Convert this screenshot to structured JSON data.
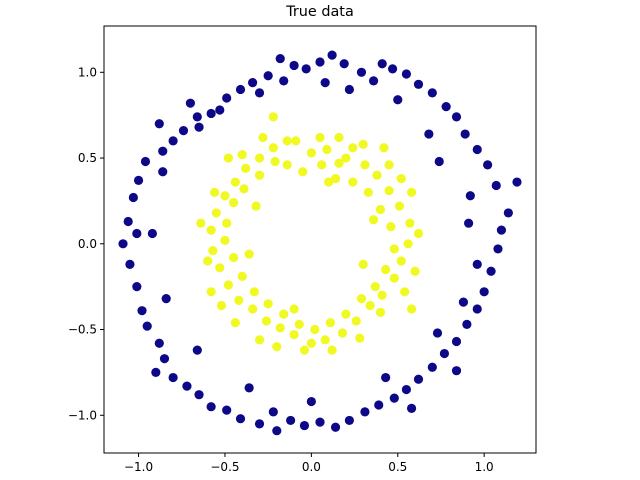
{
  "chart_data": {
    "type": "scatter",
    "title": "True data",
    "xlabel": "",
    "ylabel": "",
    "xlim": [
      -1.2,
      1.3
    ],
    "ylim": [
      -1.22,
      1.27
    ],
    "xticks": [
      -1.0,
      -0.5,
      0.0,
      0.5,
      1.0
    ],
    "xtick_labels": [
      "−1.0",
      "−0.5",
      "0.0",
      "0.5",
      "1.0"
    ],
    "yticks": [
      -1.0,
      -0.5,
      0.0,
      0.5,
      1.0
    ],
    "ytick_labels": [
      "−1.0",
      "−0.5",
      "0.0",
      "0.5",
      "1.0"
    ],
    "grid": false,
    "legend": "none",
    "colors": {
      "outer": "#0d0887",
      "inner": "#f0f921"
    },
    "series": [
      {
        "color": "#0d0887",
        "points": [
          [
            -0.18,
            1.08
          ],
          [
            -0.1,
            1.04
          ],
          [
            -0.03,
            1.02
          ],
          [
            0.05,
            1.06
          ],
          [
            0.12,
            1.1
          ],
          [
            0.19,
            1.05
          ],
          [
            0.29,
            1.0
          ],
          [
            0.36,
            0.95
          ],
          [
            -0.25,
            0.98
          ],
          [
            -0.34,
            0.94
          ],
          [
            -0.41,
            0.9
          ],
          [
            -0.49,
            0.85
          ],
          [
            -0.58,
            0.76
          ],
          [
            -0.66,
            0.74
          ],
          [
            -0.74,
            0.66
          ],
          [
            -0.8,
            0.6
          ],
          [
            -0.86,
            0.54
          ],
          [
            -0.96,
            0.48
          ],
          [
            -1.0,
            0.37
          ],
          [
            -1.03,
            0.27
          ],
          [
            -1.06,
            0.13
          ],
          [
            -1.09,
            0.0
          ],
          [
            -1.05,
            -0.12
          ],
          [
            -1.01,
            -0.25
          ],
          [
            -0.98,
            -0.39
          ],
          [
            -0.95,
            -0.48
          ],
          [
            -0.88,
            -0.58
          ],
          [
            -0.85,
            -0.67
          ],
          [
            -0.8,
            -0.78
          ],
          [
            -0.72,
            -0.83
          ],
          [
            -0.65,
            -0.88
          ],
          [
            -0.58,
            -0.95
          ],
          [
            -0.49,
            -0.97
          ],
          [
            -0.41,
            -1.02
          ],
          [
            -0.3,
            -1.05
          ],
          [
            -0.2,
            -1.09
          ],
          [
            -0.12,
            -1.03
          ],
          [
            -0.04,
            -1.06
          ],
          [
            0.05,
            -1.04
          ],
          [
            0.14,
            -1.07
          ],
          [
            0.22,
            -1.03
          ],
          [
            0.31,
            -0.98
          ],
          [
            0.39,
            -0.94
          ],
          [
            0.48,
            -0.9
          ],
          [
            0.55,
            -0.85
          ],
          [
            0.62,
            -0.79
          ],
          [
            0.7,
            -0.72
          ],
          [
            0.77,
            -0.64
          ],
          [
            0.84,
            -0.57
          ],
          [
            0.9,
            -0.47
          ],
          [
            0.96,
            -0.38
          ],
          [
            1.0,
            -0.28
          ],
          [
            1.04,
            -0.16
          ],
          [
            1.08,
            -0.03
          ],
          [
            1.1,
            0.08
          ],
          [
            1.14,
            0.18
          ],
          [
            1.19,
            0.36
          ],
          [
            1.07,
            0.34
          ],
          [
            1.02,
            0.46
          ],
          [
            0.96,
            0.55
          ],
          [
            0.89,
            0.64
          ],
          [
            0.84,
            0.74
          ],
          [
            0.78,
            0.8
          ],
          [
            0.7,
            0.88
          ],
          [
            0.62,
            0.93
          ],
          [
            0.55,
            0.99
          ],
          [
            0.47,
            1.02
          ],
          [
            0.41,
            1.05
          ],
          [
            -0.7,
            0.82
          ],
          [
            -0.53,
            0.78
          ],
          [
            -0.16,
            0.95
          ],
          [
            0.22,
            0.9
          ],
          [
            0.68,
            0.64
          ],
          [
            0.92,
            0.28
          ],
          [
            0.96,
            -0.12
          ],
          [
            0.88,
            -0.34
          ],
          [
            0.73,
            -0.52
          ],
          [
            0.43,
            -0.78
          ],
          [
            0.0,
            -0.92
          ],
          [
            -0.36,
            -0.84
          ],
          [
            -0.66,
            -0.62
          ],
          [
            -0.84,
            -0.32
          ],
          [
            -0.92,
            0.06
          ],
          [
            -0.86,
            0.42
          ],
          [
            -0.65,
            0.68
          ],
          [
            -0.3,
            0.88
          ],
          [
            0.08,
            0.94
          ],
          [
            0.5,
            0.84
          ],
          [
            0.74,
            0.48
          ],
          [
            0.91,
            0.12
          ],
          [
            0.84,
            -0.74
          ],
          [
            0.58,
            -0.96
          ],
          [
            -0.22,
            -0.98
          ],
          [
            -0.9,
            -0.75
          ],
          [
            -1.01,
            0.06
          ],
          [
            -0.88,
            0.7
          ]
        ]
      },
      {
        "color": "#f0f921",
        "points": [
          [
            -0.22,
            0.74
          ],
          [
            -0.09,
            0.6
          ],
          [
            0.0,
            0.53
          ],
          [
            0.09,
            0.55
          ],
          [
            0.16,
            0.47
          ],
          [
            0.24,
            0.56
          ],
          [
            0.31,
            0.46
          ],
          [
            0.38,
            0.4
          ],
          [
            0.45,
            0.31
          ],
          [
            0.51,
            0.22
          ],
          [
            0.57,
            0.12
          ],
          [
            0.56,
            0.0
          ],
          [
            0.52,
            -0.1
          ],
          [
            0.48,
            -0.2
          ],
          [
            0.41,
            -0.3
          ],
          [
            0.34,
            -0.36
          ],
          [
            0.26,
            -0.45
          ],
          [
            0.18,
            -0.52
          ],
          [
            0.08,
            -0.56
          ],
          [
            0.0,
            -0.58
          ],
          [
            -0.1,
            -0.53
          ],
          [
            -0.18,
            -0.49
          ],
          [
            -0.26,
            -0.45
          ],
          [
            -0.34,
            -0.38
          ],
          [
            -0.42,
            -0.33
          ],
          [
            -0.48,
            -0.24
          ],
          [
            -0.53,
            -0.14
          ],
          [
            -0.57,
            -0.04
          ],
          [
            -0.58,
            0.08
          ],
          [
            -0.55,
            0.18
          ],
          [
            -0.5,
            0.28
          ],
          [
            -0.44,
            0.36
          ],
          [
            -0.38,
            0.44
          ],
          [
            -0.3,
            0.5
          ],
          [
            -0.22,
            0.56
          ],
          [
            -0.14,
            0.46
          ],
          [
            -0.05,
            0.42
          ],
          [
            0.06,
            0.46
          ],
          [
            0.14,
            0.38
          ],
          [
            0.24,
            0.36
          ],
          [
            0.33,
            0.3
          ],
          [
            0.4,
            0.2
          ],
          [
            0.46,
            0.1
          ],
          [
            0.48,
            -0.03
          ],
          [
            0.43,
            -0.15
          ],
          [
            0.37,
            -0.25
          ],
          [
            0.29,
            -0.32
          ],
          [
            0.2,
            -0.41
          ],
          [
            0.11,
            -0.46
          ],
          [
            0.02,
            -0.5
          ],
          [
            -0.07,
            -0.47
          ],
          [
            -0.16,
            -0.41
          ],
          [
            -0.25,
            -0.35
          ],
          [
            -0.33,
            -0.28
          ],
          [
            -0.4,
            -0.19
          ],
          [
            -0.45,
            -0.08
          ],
          [
            -0.5,
            0.02
          ],
          [
            -0.49,
            0.12
          ],
          [
            -0.45,
            0.24
          ],
          [
            -0.39,
            0.32
          ],
          [
            -0.3,
            0.4
          ],
          [
            -0.21,
            0.48
          ],
          [
            0.05,
            0.62
          ],
          [
            0.45,
            0.46
          ],
          [
            0.58,
            0.3
          ],
          [
            0.6,
            -0.16
          ],
          [
            0.4,
            -0.4
          ],
          [
            -0.04,
            -0.62
          ],
          [
            -0.44,
            -0.46
          ],
          [
            -0.6,
            -0.1
          ],
          [
            -0.56,
            0.3
          ],
          [
            -0.28,
            0.62
          ],
          [
            0.2,
            0.5
          ],
          [
            0.52,
            0.38
          ],
          [
            0.54,
            -0.28
          ],
          [
            0.12,
            -0.62
          ],
          [
            -0.3,
            -0.56
          ],
          [
            -0.64,
            0.12
          ],
          [
            -0.48,
            0.5
          ],
          [
            0.3,
            0.58
          ],
          [
            0.62,
            0.06
          ],
          [
            0.28,
            -0.55
          ],
          [
            -0.2,
            -0.6
          ],
          [
            -0.52,
            -0.36
          ],
          [
            -0.4,
            0.52
          ],
          [
            0.1,
            0.36
          ],
          [
            0.36,
            0.14
          ],
          [
            0.3,
            -0.12
          ],
          [
            -0.1,
            -0.38
          ],
          [
            -0.36,
            -0.06
          ],
          [
            -0.32,
            0.22
          ],
          [
            -0.14,
            0.6
          ],
          [
            0.16,
            0.62
          ],
          [
            0.42,
            0.56
          ],
          [
            0.58,
            -0.38
          ],
          [
            -0.58,
            -0.28
          ]
        ]
      }
    ]
  }
}
